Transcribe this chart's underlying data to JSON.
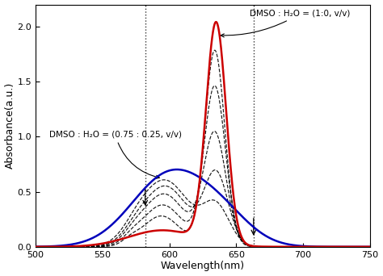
{
  "xlim": [
    500,
    750
  ],
  "ylim": [
    0,
    2.2
  ],
  "xlabel": "Wavelength(nm)",
  "ylabel": "Absorbance(a.u.)",
  "xticks": [
    500,
    550,
    600,
    650,
    700,
    750
  ],
  "yticks": [
    0,
    0.5,
    1.0,
    1.5,
    2.0
  ],
  "vline1": 582,
  "vline2": 663,
  "annotation_dmso_text": "DMSO : H₂O = (1:0, v/v)",
  "annotation_mix_text": "DMSO : H₂O = (0.75 : 0.25, v/v)",
  "red_color": "#cc0000",
  "blue_color": "#0000bb",
  "black_color": "#000000",
  "background": "#ffffff",
  "figsize": [
    4.74,
    3.42
  ],
  "dpi": 100
}
